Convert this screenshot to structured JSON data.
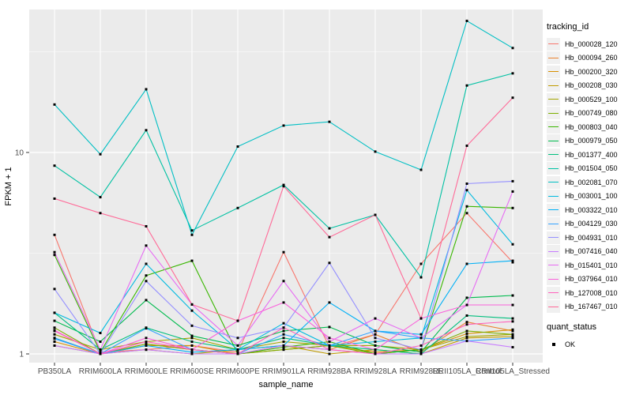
{
  "figure": {
    "panel_bg": "#EBEBEB",
    "grid_color": "#FFFFFF",
    "tick_color": "#333333",
    "tick_label_color": "#4D4D4D",
    "point_color": "#000000"
  },
  "chart_data": {
    "type": "line",
    "title": "",
    "xlabel": "sample_name",
    "ylabel": "FPKM + 1",
    "y_scale": "log10",
    "y_major_ticks": [
      1,
      10
    ],
    "y_minor_ticks": [
      3.162,
      31.62
    ],
    "ylim": [
      0.9,
      52
    ],
    "grid": "major+minor",
    "legend_position": "right",
    "point_marker": "filled-square",
    "categories": [
      "PB350LA",
      "RRIM600LA",
      "RRIM600LE",
      "RRIM600SE",
      "RRIM600PE",
      "RRIM901LA",
      "RRIM928BA",
      "RRIM928LA",
      "RRIM928LE",
      "RRII105LA_Control",
      "RRII105LA_Stressed"
    ],
    "series": [
      {
        "name": "Hb_000028_120",
        "color": "#F8766D",
        "values": [
          3.9,
          1.02,
          1.05,
          1.1,
          1.02,
          3.2,
          1.08,
          1.25,
          2.8,
          5.0,
          2.85
        ]
      },
      {
        "name": "Hb_000094_260",
        "color": "#EA8331",
        "values": [
          1.2,
          1.0,
          1.12,
          1.05,
          1.0,
          1.1,
          1.05,
          1.25,
          1.02,
          1.44,
          1.3
        ]
      },
      {
        "name": "Hb_000200_320",
        "color": "#D89000",
        "values": [
          1.15,
          1.0,
          1.1,
          1.1,
          1.0,
          1.05,
          1.1,
          1.02,
          1.05,
          1.26,
          1.32
        ]
      },
      {
        "name": "Hb_000208_030",
        "color": "#C09B00",
        "values": [
          1.1,
          1.0,
          1.05,
          1.0,
          1.05,
          1.1,
          1.0,
          1.05,
          1.0,
          1.2,
          1.22
        ]
      },
      {
        "name": "Hb_000529_100",
        "color": "#A3A500",
        "values": [
          1.25,
          1.05,
          1.15,
          1.2,
          1.05,
          1.15,
          1.1,
          1.1,
          1.05,
          1.22,
          1.25
        ]
      },
      {
        "name": "Hb_000749_080",
        "color": "#7CAE00",
        "values": [
          1.35,
          1.0,
          1.12,
          1.05,
          1.0,
          1.05,
          1.1,
          1.0,
          1.05,
          1.3,
          1.25
        ]
      },
      {
        "name": "Hb_000803_040",
        "color": "#39B600",
        "values": [
          3.1,
          1.02,
          2.45,
          2.9,
          1.0,
          1.08,
          1.15,
          1.0,
          1.05,
          5.4,
          5.3
        ]
      },
      {
        "name": "Hb_000979_050",
        "color": "#00BB4E",
        "values": [
          1.46,
          1.15,
          1.85,
          1.23,
          1.1,
          1.3,
          1.36,
          1.1,
          1.02,
          1.9,
          1.95
        ]
      },
      {
        "name": "Hb_001377_400",
        "color": "#00BF7D",
        "values": [
          1.6,
          1.05,
          1.35,
          1.15,
          1.05,
          1.2,
          1.1,
          1.05,
          1.0,
          1.55,
          1.5
        ]
      },
      {
        "name": "Hb_001504_050",
        "color": "#00C1A3",
        "values": [
          8.6,
          6.0,
          12.9,
          4.1,
          5.3,
          6.9,
          4.2,
          4.9,
          2.4,
          21.5,
          24.7
        ]
      },
      {
        "name": "Hb_002081_070",
        "color": "#00BFC4",
        "values": [
          17.3,
          9.8,
          20.6,
          3.9,
          10.7,
          13.6,
          14.2,
          10.1,
          8.2,
          45.0,
          33.0
        ]
      },
      {
        "name": "Hb_003001_100",
        "color": "#00BAE0",
        "values": [
          1.6,
          1.27,
          2.8,
          1.64,
          1.05,
          1.42,
          1.1,
          1.15,
          1.2,
          6.5,
          3.5
        ]
      },
      {
        "name": "Hb_003322_010",
        "color": "#00B0F6",
        "values": [
          1.2,
          1.0,
          1.1,
          1.02,
          1.05,
          1.1,
          1.8,
          1.3,
          1.25,
          2.8,
          2.9
        ]
      },
      {
        "name": "Hb_004129_030",
        "color": "#35A2FF",
        "values": [
          1.19,
          1.0,
          1.34,
          1.05,
          1.0,
          1.25,
          1.1,
          1.3,
          1.2,
          1.16,
          1.2
        ]
      },
      {
        "name": "Hb_004931_010",
        "color": "#9590FF",
        "values": [
          2.1,
          1.0,
          2.3,
          1.38,
          1.2,
          1.35,
          2.83,
          1.2,
          1.05,
          7.0,
          7.2
        ]
      },
      {
        "name": "Hb_007416_040",
        "color": "#C77CFF",
        "values": [
          1.1,
          1.0,
          1.05,
          1.0,
          1.0,
          1.1,
          1.05,
          1.0,
          1.0,
          1.16,
          1.08
        ]
      },
      {
        "name": "Hb_015401_010",
        "color": "#E76BF3",
        "values": [
          3.2,
          1.05,
          3.45,
          1.76,
          1.1,
          2.3,
          1.15,
          1.5,
          1.2,
          1.75,
          6.4
        ]
      },
      {
        "name": "Hb_037964_010",
        "color": "#FA62DB",
        "values": [
          1.31,
          1.0,
          1.2,
          1.05,
          1.46,
          1.8,
          1.2,
          1.05,
          1.5,
          1.75,
          1.75
        ]
      },
      {
        "name": "Hb_127008_010",
        "color": "#FF62BC",
        "values": [
          1.3,
          1.0,
          1.15,
          1.05,
          1.0,
          1.35,
          1.05,
          1.0,
          1.1,
          1.4,
          1.45
        ]
      },
      {
        "name": "Hb_167467_010",
        "color": "#FF6A98",
        "values": [
          5.9,
          5.0,
          4.3,
          1.76,
          1.46,
          6.8,
          3.8,
          4.9,
          1.5,
          10.8,
          18.7
        ]
      }
    ]
  },
  "legend": {
    "tracking_title": "tracking_id",
    "quant_title": "quant_status",
    "quant_items": [
      {
        "label": "OK",
        "marker": "square",
        "color": "#000000"
      }
    ]
  }
}
